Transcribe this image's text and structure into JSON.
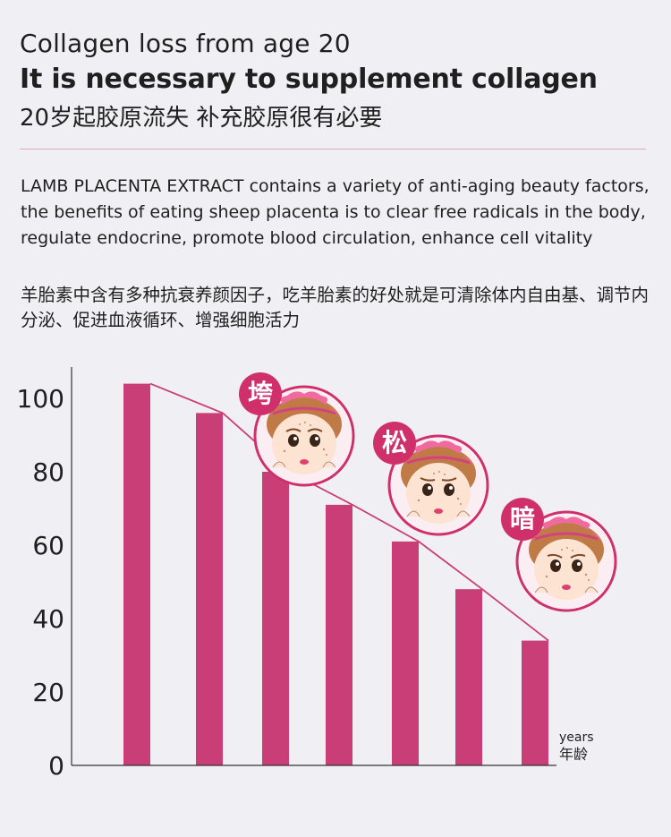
{
  "heading": {
    "line1": "Collagen loss from age 20",
    "line2": "It is necessary to supplement collagen",
    "line3": "20岁起胶原流失 补充胶原很有必要"
  },
  "description": {
    "en": "LAMB PLACENTA EXTRACT contains a variety of anti-aging beauty factors, the benefits of eating sheep placenta is to clear free radicals in the body, regulate endocrine, promote blood circulation, enhance cell vitality",
    "cn": "羊胎素中含有多种抗衰养颜因子，吃羊胎素的好处就是可清除体内自由基、调节内分泌、促进血液循环、增强细胞活力"
  },
  "colors": {
    "bar": "#c93e76",
    "accent": "#d0306a",
    "background": "#f0eff4"
  },
  "badges": [
    {
      "label": "垮",
      "icon": "girl-face-sagging-icon"
    },
    {
      "label": "松",
      "icon": "girl-face-loose-icon"
    },
    {
      "label": "暗",
      "icon": "girl-face-dull-icon"
    }
  ],
  "chart_data": {
    "type": "bar",
    "categories": [
      "",
      "",
      "",
      "",
      "",
      "",
      ""
    ],
    "values": [
      104,
      96,
      80,
      71,
      61,
      48,
      34
    ],
    "overlay_line": true,
    "ylim": [
      0,
      110
    ],
    "yticks": [
      0,
      20,
      40,
      60,
      80,
      100
    ],
    "xlabel": "years",
    "xlabel_cn": "年龄",
    "ylabel": "",
    "title": "",
    "grid": false,
    "legend": "none"
  }
}
